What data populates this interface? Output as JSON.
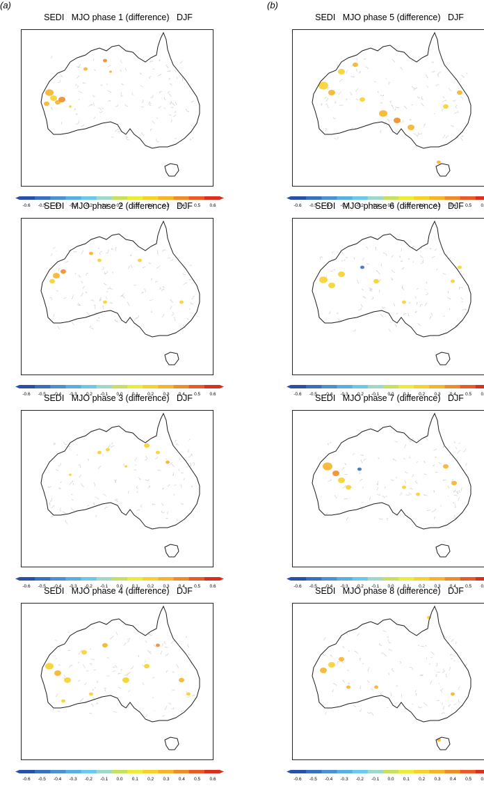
{
  "figure": {
    "columns": [
      {
        "label": "(a)",
        "panels": [
          {
            "title": "SEDI   MJO phase 1 (difference)   DJF",
            "phase": 1
          },
          {
            "title": "SEDI   MJO phase 2 (difference)   DJF",
            "phase": 2
          },
          {
            "title": "SEDI   MJO phase 3 (difference)   DJF",
            "phase": 3
          },
          {
            "title": "SEDI   MJO phase 4 (difference)   DJF",
            "phase": 4
          }
        ]
      },
      {
        "label": "(b)",
        "panels": [
          {
            "title": "SEDI   MJO phase 5 (difference)   DJF",
            "phase": 5
          },
          {
            "title": "SEDI   MJO phase 6 (difference)   DJF",
            "phase": 6
          },
          {
            "title": "SEDI   MJO phase 7 (difference)   DJF",
            "phase": 7
          },
          {
            "title": "SEDI   MJO phase 8 (difference)   DJF",
            "phase": 8
          }
        ]
      }
    ]
  },
  "colorbar": {
    "ticks": [
      "-0.6",
      "-0.5",
      "-0.4",
      "-0.3",
      "-0.2",
      "-0.1",
      "0.0",
      "0.1",
      "0.2",
      "0.3",
      "0.4",
      "0.5",
      "0.6"
    ],
    "colors": [
      "#2a4fa8",
      "#3a6fc0",
      "#4d8fd0",
      "#5aaee0",
      "#6cc8e8",
      "#9fd8c8",
      "#c8e060",
      "#ecec3a",
      "#f6d22c",
      "#f6b42a",
      "#f08c28",
      "#e85a26",
      "#d8301e"
    ]
  },
  "map_colors": {
    "coast": "#1a1a1a",
    "contour": "#c8c8c8"
  }
}
